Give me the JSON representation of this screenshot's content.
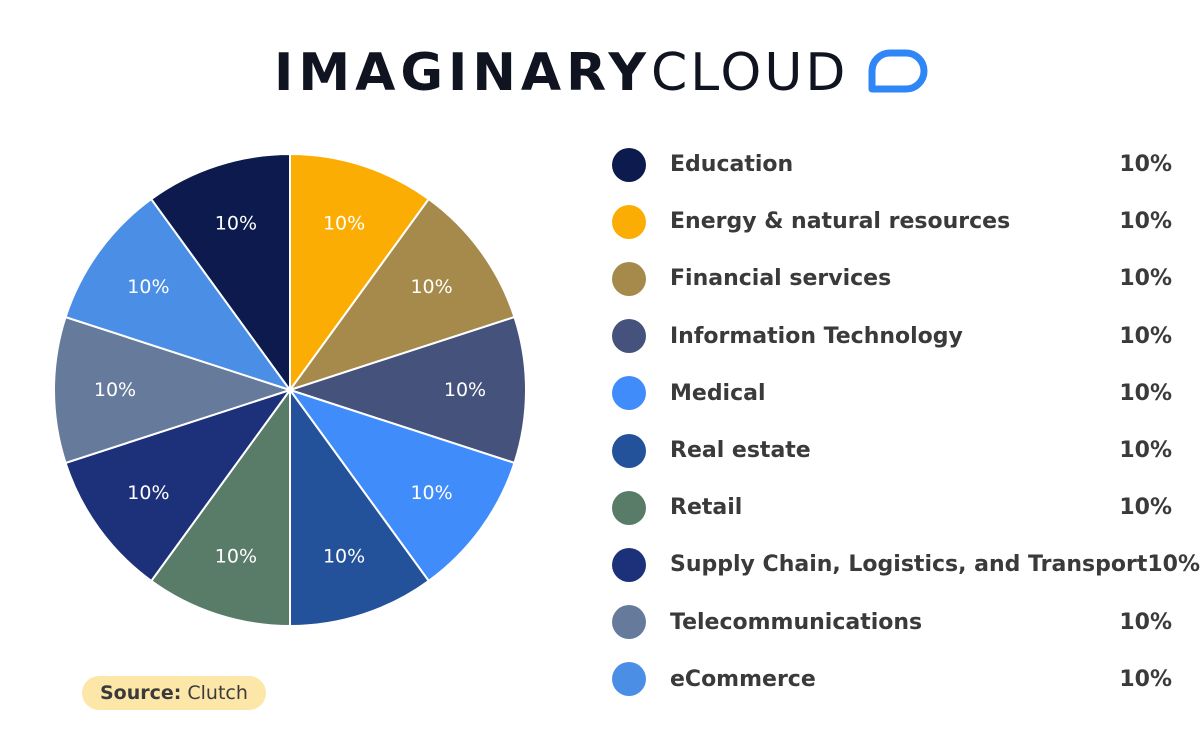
{
  "brand": {
    "word_bold": "IMAGINARY",
    "word_light": "CLOUD",
    "mark_icon": "rounded-cloud-outline-icon",
    "mark_color": "#2f86f6"
  },
  "chart_data": {
    "type": "pie",
    "categories": [
      "Education",
      "Energy & natural resources",
      "Financial services",
      "Information Technology",
      "Medical",
      "Real estate",
      "Retail",
      "Supply Chain, Logistics, and Transport",
      "Telecommunications",
      "eCommerce"
    ],
    "values": [
      10,
      10,
      10,
      10,
      10,
      10,
      10,
      10,
      10,
      10
    ],
    "value_labels": [
      "10%",
      "10%",
      "10%",
      "10%",
      "10%",
      "10%",
      "10%",
      "10%",
      "10%",
      "10%"
    ],
    "slice_order": [
      1,
      2,
      3,
      4,
      5,
      6,
      7,
      8,
      9,
      0
    ],
    "colors": [
      "#0c1a4d",
      "#fcad04",
      "#a68a4c",
      "#45527b",
      "#418cfb",
      "#23529a",
      "#597c69",
      "#1d307a",
      "#667b9c",
      "#4b8ee6"
    ],
    "legend_position": "right"
  },
  "source": {
    "label": "Source:",
    "value": "Clutch"
  }
}
